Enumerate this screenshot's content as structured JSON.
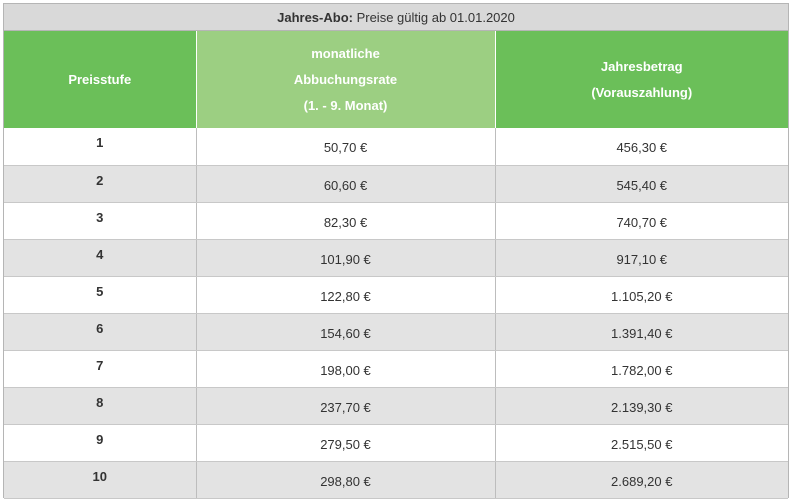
{
  "caption": {
    "bold": "Jahres-Abo:",
    "text": " Preise gültig ab 01.01.2020"
  },
  "header": {
    "col1": "Preisstufe",
    "col2": [
      "monatliche",
      "Abbuchungsrate",
      "(1. - 9. Monat)"
    ],
    "col3": [
      "Jahresbetrag",
      "(Vorauszahlung)"
    ]
  },
  "rows": [
    {
      "stufe": "1",
      "monat": "50,70 €",
      "jahr": "456,30 €"
    },
    {
      "stufe": "2",
      "monat": "60,60 €",
      "jahr": "545,40 €"
    },
    {
      "stufe": "3",
      "monat": "82,30 €",
      "jahr": "740,70 €"
    },
    {
      "stufe": "4",
      "monat": "101,90 €",
      "jahr": "917,10 €"
    },
    {
      "stufe": "5",
      "monat": "122,80 €",
      "jahr": "1.105,20 €"
    },
    {
      "stufe": "6",
      "monat": "154,60 €",
      "jahr": "1.391,40 €"
    },
    {
      "stufe": "7",
      "monat": "198,00 €",
      "jahr": "1.782,00 €"
    },
    {
      "stufe": "8",
      "monat": "237,70 €",
      "jahr": "2.139,30 €"
    },
    {
      "stufe": "9",
      "monat": "279,50 €",
      "jahr": "2.515,50 €"
    },
    {
      "stufe": "10",
      "monat": "298,80 €",
      "jahr": "2.689,20 €"
    }
  ],
  "colors": {
    "header_green": "#6bbf59",
    "header_light_green": "#9ccf82",
    "stripe": "#e3e3e3",
    "caption_bg": "#d9d9d9"
  }
}
